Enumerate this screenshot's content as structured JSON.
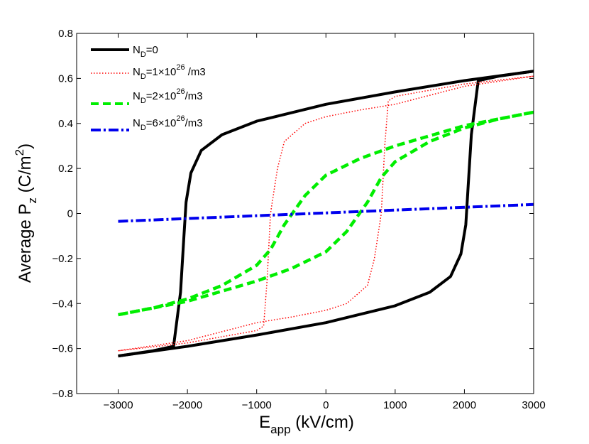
{
  "chart_data": {
    "type": "line",
    "title": "",
    "xlabel": {
      "main": "E",
      "sub": "app",
      "unit": " (kV/cm)"
    },
    "ylabel": {
      "main": "Average P",
      "sub": "z",
      "unit_pre": " (C/m",
      "unit_sup": "2",
      "unit_post": ")"
    },
    "xlim": [
      -3600,
      3000
    ],
    "ylim": [
      -0.8,
      0.8
    ],
    "xticks": [
      -3000,
      -2000,
      -1000,
      0,
      1000,
      2000,
      3000
    ],
    "xtick_labels": [
      "−3000",
      "−2000",
      "−1000",
      "0",
      "1000",
      "2000",
      "3000"
    ],
    "yticks": [
      -0.8,
      -0.6,
      -0.4,
      -0.2,
      0,
      0.2,
      0.4,
      0.6,
      0.8
    ],
    "ytick_labels": [
      "−0.8",
      "−0.6",
      "−0.4",
      "−0.2",
      "0",
      "0.2",
      "0.4",
      "0.6",
      "0.8"
    ],
    "grid": false,
    "legend_position": "top-left",
    "series": [
      {
        "id": "nd0",
        "legend": {
          "base": "N",
          "sub": "D",
          "text": "=0",
          "sup": "",
          "suffix": ""
        },
        "color": "#000000",
        "style": "solid",
        "branches": [
          {
            "x": [
              -3000,
              -2000,
              -1000,
              0,
              1000,
              1500,
              1800,
              1950,
              2020,
              2050,
              2100,
              2200,
              2500,
              3000
            ],
            "y": [
              -0.633,
              -0.59,
              -0.54,
              -0.485,
              -0.41,
              -0.35,
              -0.28,
              -0.18,
              -0.05,
              0.1,
              0.35,
              0.59,
              0.61,
              0.632
            ]
          },
          {
            "x": [
              3000,
              2000,
              1000,
              0,
              -1000,
              -1500,
              -1800,
              -1950,
              -2020,
              -2050,
              -2100,
              -2200,
              -2500,
              -3000
            ],
            "y": [
              0.632,
              0.59,
              0.54,
              0.485,
              0.41,
              0.35,
              0.28,
              0.18,
              0.05,
              -0.1,
              -0.35,
              -0.59,
              -0.61,
              -0.633
            ]
          }
        ]
      },
      {
        "id": "nd1",
        "legend": {
          "base": "N",
          "sub": "D",
          "text": "=1×10",
          "sup": "26",
          "suffix": " /m3"
        },
        "color": "#ff0000",
        "style": "dotted",
        "branches": [
          {
            "x": [
              -3000,
              -2000,
              -1000,
              -500,
              0,
              300,
              600,
              700,
              800,
              850,
              900,
              1000,
              2000,
              3000
            ],
            "y": [
              -0.61,
              -0.565,
              -0.485,
              -0.46,
              -0.43,
              -0.4,
              -0.32,
              -0.2,
              0.0,
              0.3,
              0.5,
              0.52,
              0.575,
              0.61
            ]
          },
          {
            "x": [
              3000,
              2000,
              1000,
              500,
              0,
              -300,
              -600,
              -700,
              -800,
              -850,
              -900,
              -1000,
              -2000,
              -3000
            ],
            "y": [
              0.61,
              0.565,
              0.485,
              0.46,
              0.43,
              0.4,
              0.32,
              0.2,
              0.0,
              -0.3,
              -0.5,
              -0.52,
              -0.575,
              -0.61
            ]
          }
        ]
      },
      {
        "id": "nd2",
        "legend": {
          "base": "N",
          "sub": "D",
          "text": "=2×10",
          "sup": "26",
          "suffix": "/m3"
        },
        "color": "#00ee00",
        "style": "dashed",
        "branches": [
          {
            "x": [
              -3000,
              -2000,
              -1000,
              -500,
              0,
              300,
              600,
              800,
              1000,
              1500,
              2000,
              2500,
              3000
            ],
            "y": [
              -0.45,
              -0.39,
              -0.3,
              -0.245,
              -0.17,
              -0.08,
              0.05,
              0.16,
              0.23,
              0.32,
              0.38,
              0.42,
              0.45
            ]
          },
          {
            "x": [
              3000,
              2000,
              1000,
              500,
              0,
              -300,
              -600,
              -800,
              -1000,
              -1500,
              -2000,
              -2500,
              -3000
            ],
            "y": [
              0.45,
              0.39,
              0.3,
              0.245,
              0.17,
              0.08,
              -0.05,
              -0.16,
              -0.23,
              -0.32,
              -0.38,
              -0.42,
              -0.45
            ]
          }
        ]
      },
      {
        "id": "nd6",
        "legend": {
          "base": "N",
          "sub": "D",
          "text": "=6×10",
          "sup": "26",
          "suffix": "/m3"
        },
        "color": "#0000ee",
        "style": "dashdot",
        "branches": [
          {
            "x": [
              -3000,
              3000
            ],
            "y": [
              -0.035,
              0.04
            ]
          }
        ]
      }
    ]
  }
}
